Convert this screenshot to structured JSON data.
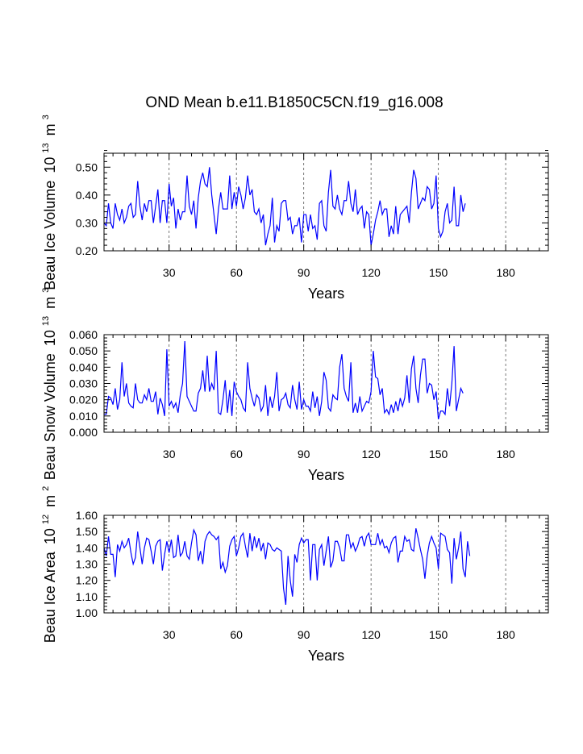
{
  "title": "OND Mean b.e11.B1850C5CN.f19_g16.008",
  "colors": {
    "line": "#0000ff",
    "axis": "#000000",
    "grid": "#555555"
  },
  "chart_data": [
    {
      "type": "line",
      "ylabel": "Beau Ice Volume",
      "ylabel_unit_base": "10",
      "ylabel_unit_exp": "13",
      "ylabel_unit_sym": "m",
      "ylabel_unit_sym_exp": "3",
      "xlabel": "Years",
      "xlim": [
        1,
        199
      ],
      "ylim": [
        0.2,
        0.55
      ],
      "xticks": [
        30,
        60,
        90,
        120,
        150,
        180
      ],
      "xtick_labels": [
        "30",
        "60",
        "90",
        "120",
        "150",
        "180"
      ],
      "yticks": [
        0.2,
        0.3,
        0.4,
        0.5
      ],
      "ytick_labels": [
        "0.20",
        "0.30",
        "0.40",
        "0.50"
      ],
      "grid_x": "dashed at x ticks",
      "values": [
        0.3,
        0.29,
        0.37,
        0.3,
        0.28,
        0.37,
        0.33,
        0.31,
        0.35,
        0.3,
        0.32,
        0.36,
        0.37,
        0.32,
        0.33,
        0.45,
        0.36,
        0.31,
        0.37,
        0.34,
        0.38,
        0.38,
        0.3,
        0.36,
        0.42,
        0.3,
        0.38,
        0.38,
        0.3,
        0.44,
        0.36,
        0.39,
        0.28,
        0.35,
        0.31,
        0.34,
        0.34,
        0.47,
        0.36,
        0.33,
        0.38,
        0.28,
        0.39,
        0.45,
        0.48,
        0.44,
        0.43,
        0.5,
        0.4,
        0.33,
        0.26,
        0.35,
        0.41,
        0.35,
        0.35,
        0.35,
        0.47,
        0.35,
        0.41,
        0.36,
        0.43,
        0.4,
        0.35,
        0.39,
        0.47,
        0.4,
        0.42,
        0.34,
        0.33,
        0.35,
        0.3,
        0.33,
        0.22,
        0.26,
        0.29,
        0.39,
        0.23,
        0.29,
        0.27,
        0.37,
        0.38,
        0.38,
        0.31,
        0.32,
        0.26,
        0.29,
        0.29,
        0.32,
        0.23,
        0.33,
        0.33,
        0.27,
        0.33,
        0.28,
        0.29,
        0.24,
        0.37,
        0.38,
        0.29,
        0.27,
        0.41,
        0.49,
        0.36,
        0.35,
        0.4,
        0.35,
        0.33,
        0.38,
        0.38,
        0.45,
        0.37,
        0.34,
        0.42,
        0.33,
        0.35,
        0.36,
        0.28,
        0.34,
        0.33,
        0.22,
        0.26,
        0.31,
        0.34,
        0.38,
        0.33,
        0.35,
        0.35,
        0.25,
        0.29,
        0.26,
        0.36,
        0.26,
        0.33,
        0.34,
        0.35,
        0.36,
        0.3,
        0.41,
        0.49,
        0.46,
        0.35,
        0.37,
        0.39,
        0.38,
        0.43,
        0.42,
        0.35,
        0.37,
        0.47,
        0.28,
        0.25,
        0.27,
        0.34,
        0.37,
        0.3,
        0.31,
        0.43,
        0.29,
        0.29,
        0.4,
        0.34,
        0.37
      ]
    },
    {
      "type": "line",
      "ylabel": "Beau Snow Volume",
      "ylabel_unit_base": "10",
      "ylabel_unit_exp": "13",
      "ylabel_unit_sym": "m",
      "ylabel_unit_sym_exp": "3",
      "xlabel": "Years",
      "xlim": [
        1,
        199
      ],
      "ylim": [
        0.0,
        0.06
      ],
      "xticks": [
        30,
        60,
        90,
        120,
        150,
        180
      ],
      "xtick_labels": [
        "30",
        "60",
        "90",
        "120",
        "150",
        "180"
      ],
      "yticks": [
        0.0,
        0.01,
        0.02,
        0.03,
        0.04,
        0.05,
        0.06
      ],
      "ytick_labels": [
        "0.000",
        "0.010",
        "0.020",
        "0.030",
        "0.040",
        "0.050",
        "0.060"
      ],
      "grid_x": "dashed at x ticks",
      "values": [
        0.011,
        0.011,
        0.022,
        0.021,
        0.017,
        0.027,
        0.014,
        0.02,
        0.043,
        0.022,
        0.03,
        0.018,
        0.016,
        0.015,
        0.03,
        0.02,
        0.018,
        0.018,
        0.023,
        0.02,
        0.027,
        0.019,
        0.019,
        0.025,
        0.011,
        0.021,
        0.017,
        0.01,
        0.051,
        0.016,
        0.019,
        0.015,
        0.018,
        0.012,
        0.023,
        0.03,
        0.056,
        0.022,
        0.019,
        0.016,
        0.013,
        0.013,
        0.024,
        0.027,
        0.038,
        0.025,
        0.047,
        0.025,
        0.03,
        0.026,
        0.05,
        0.012,
        0.011,
        0.02,
        0.032,
        0.012,
        0.026,
        0.01,
        0.031,
        0.025,
        0.022,
        0.02,
        0.015,
        0.013,
        0.043,
        0.027,
        0.021,
        0.016,
        0.023,
        0.021,
        0.013,
        0.016,
        0.029,
        0.01,
        0.022,
        0.015,
        0.022,
        0.037,
        0.013,
        0.02,
        0.021,
        0.024,
        0.017,
        0.015,
        0.029,
        0.02,
        0.014,
        0.031,
        0.014,
        0.02,
        0.016,
        0.016,
        0.013,
        0.025,
        0.015,
        0.022,
        0.01,
        0.019,
        0.037,
        0.032,
        0.015,
        0.013,
        0.023,
        0.021,
        0.02,
        0.04,
        0.048,
        0.027,
        0.022,
        0.019,
        0.043,
        0.012,
        0.018,
        0.012,
        0.022,
        0.013,
        0.016,
        0.019,
        0.018,
        0.025,
        0.05,
        0.034,
        0.033,
        0.023,
        0.027,
        0.012,
        0.014,
        0.011,
        0.017,
        0.012,
        0.019,
        0.013,
        0.021,
        0.016,
        0.021,
        0.035,
        0.018,
        0.039,
        0.047,
        0.027,
        0.018,
        0.035,
        0.045,
        0.045,
        0.024,
        0.03,
        0.029,
        0.02,
        0.025,
        0.008,
        0.013,
        0.013,
        0.011,
        0.027,
        0.016,
        0.03,
        0.053,
        0.013,
        0.02,
        0.027,
        0.024
      ]
    },
    {
      "type": "line",
      "ylabel": "Beau Ice Area",
      "ylabel_unit_base": "10",
      "ylabel_unit_exp": "12",
      "ylabel_unit_sym": "m",
      "ylabel_unit_sym_exp": "2",
      "xlabel": "Years",
      "xlim": [
        1,
        199
      ],
      "ylim": [
        1.0,
        1.6
      ],
      "xticks": [
        30,
        60,
        90,
        120,
        150,
        180
      ],
      "xtick_labels": [
        "30",
        "60",
        "90",
        "120",
        "150",
        "180"
      ],
      "yticks": [
        1.0,
        1.1,
        1.2,
        1.3,
        1.4,
        1.5,
        1.6
      ],
      "ytick_labels": [
        "1.00",
        "1.10",
        "1.20",
        "1.30",
        "1.40",
        "1.50",
        "1.60"
      ],
      "grid_x": "dashed at x ticks",
      "values": [
        1.4,
        1.35,
        1.47,
        1.36,
        1.36,
        1.22,
        1.42,
        1.38,
        1.44,
        1.4,
        1.42,
        1.46,
        1.37,
        1.3,
        1.34,
        1.5,
        1.4,
        1.3,
        1.4,
        1.46,
        1.45,
        1.38,
        1.3,
        1.41,
        1.44,
        1.45,
        1.26,
        1.36,
        1.44,
        1.37,
        1.45,
        1.34,
        1.35,
        1.48,
        1.35,
        1.37,
        1.44,
        1.35,
        1.33,
        1.43,
        1.51,
        1.48,
        1.32,
        1.38,
        1.3,
        1.44,
        1.48,
        1.5,
        1.48,
        1.47,
        1.45,
        1.47,
        1.27,
        1.31,
        1.25,
        1.29,
        1.41,
        1.45,
        1.47,
        1.35,
        1.4,
        1.47,
        1.49,
        1.41,
        1.34,
        1.49,
        1.38,
        1.47,
        1.4,
        1.46,
        1.38,
        1.43,
        1.33,
        1.43,
        1.42,
        1.39,
        1.38,
        1.4,
        1.39,
        1.38,
        1.15,
        1.05,
        1.35,
        1.2,
        1.1,
        1.36,
        1.31,
        1.42,
        1.46,
        1.43,
        1.45,
        1.45,
        1.2,
        1.42,
        1.42,
        1.2,
        1.39,
        1.42,
        1.29,
        1.38,
        1.47,
        1.28,
        1.32,
        1.44,
        1.44,
        1.4,
        1.32,
        1.32,
        1.48,
        1.48,
        1.4,
        1.43,
        1.38,
        1.41,
        1.46,
        1.47,
        1.41,
        1.47,
        1.49,
        1.42,
        1.42,
        1.42,
        1.49,
        1.42,
        1.45,
        1.4,
        1.41,
        1.37,
        1.43,
        1.46,
        1.47,
        1.31,
        1.38,
        1.38,
        1.47,
        1.44,
        1.45,
        1.39,
        1.38,
        1.52,
        1.46,
        1.39,
        1.33,
        1.21,
        1.35,
        1.43,
        1.47,
        1.43,
        1.4,
        1.27,
        1.49,
        1.48,
        1.47,
        1.39,
        1.37,
        1.18,
        1.46,
        1.33,
        1.4,
        1.5,
        1.27,
        1.22,
        1.44,
        1.35
      ]
    }
  ]
}
